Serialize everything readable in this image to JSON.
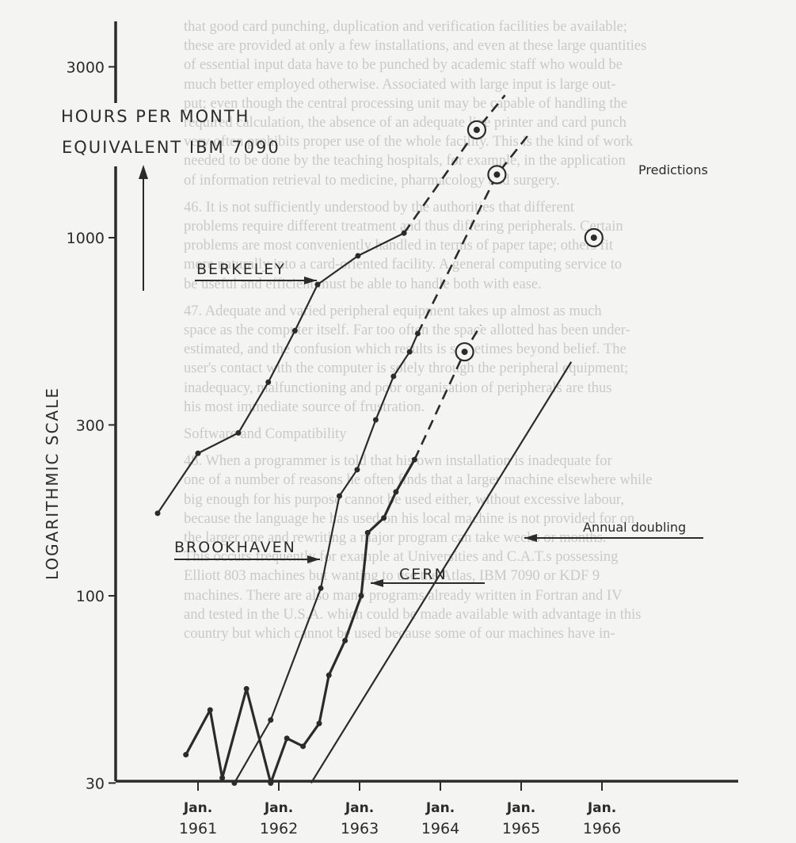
{
  "background_text": {
    "lines": [
      "that good card punching, duplication and verification facilities be available;",
      "these are provided at only a few installations, and even at these large quantities",
      "of essential input data have to be punched by academic staff who would be",
      "much better employed otherwise. Associated with large input is large out-",
      "put; even though the central processing unit may be capable of handling the",
      "required calculation, the absence of an adequate line printer and card punch",
      "very often prohibits proper use of the whole facility. This is the kind of work",
      "needed to be done by the teaching hospitals, for example, in the application",
      "of information retrieval to medicine, pharmacology and surgery.",
      "",
      "46. It is not sufficiently understood by the authorities that different",
      "problems require different treatment and thus differing peripherals. Certain",
      "problems are most conveniently handled in terms of paper tape; others fit",
      "more naturally into a card-oriented facility. A general computing service to",
      "be useful and efficient must be able to handle both with ease.",
      "",
      "47. Adequate and varied peripheral equipment takes up almost as much",
      "space as the computer itself. Far too often the space allotted has been under-",
      "estimated, and the confusion which results is sometimes beyond belief. The",
      "user's contact with the computer is solely through the peripheral equipment;",
      "inadequacy, malfunctioning and poor organisation of peripherals are thus",
      "his most immediate source of frustration.",
      "",
      "Software and Compatibility",
      "",
      "48. When a programmer is told that his own installation is inadequate for",
      "one of a number of reasons he often finds that a larger machine elsewhere while",
      "big enough for his purpose cannot be used either, without excessive labour,",
      "because the language he has used on his local machine is not provided for on",
      "the larger one and rewriting a major program can take weeks or months.",
      "This occurs frequently for example at Universities and C.A.T.s possessing",
      "Elliott 803 machines but wanting to use the Atlas, IBM 7090 or KDF 9",
      "machines. There are also many programs already written in Fortran and IV",
      "and tested in the U.S.A. which could be made available with advantage in this",
      "country but which cannot be used because some of our machines have in-"
    ]
  },
  "chart_data": {
    "type": "line",
    "title": "",
    "ylabel": "LOGARITHMIC SCALE",
    "y_unit_label": [
      "HOURS PER MONTH",
      "EQUIVALENT IBM 7090"
    ],
    "xlabel": "",
    "yscale": "log",
    "ylim": [
      30,
      3000
    ],
    "y_ticks": [
      {
        "value": 3000,
        "label": "3000"
      },
      {
        "value": 1000,
        "label": "1000"
      },
      {
        "value": 300,
        "label": "300"
      },
      {
        "value": 100,
        "label": "100"
      },
      {
        "value": 30,
        "label": "30"
      }
    ],
    "x_ticks": [
      {
        "value": 1961,
        "label": [
          "Jan.",
          "1961"
        ]
      },
      {
        "value": 1962,
        "label": [
          "Jan.",
          "1962"
        ]
      },
      {
        "value": 1963,
        "label": [
          "Jan.",
          "1963"
        ]
      },
      {
        "value": 1964,
        "label": [
          "Jan.",
          "1964"
        ]
      },
      {
        "value": 1965,
        "label": [
          "Jan.",
          "1965"
        ]
      },
      {
        "value": 1966,
        "label": [
          "Jan.",
          "1966"
        ]
      }
    ],
    "xlim": [
      1960.5,
      1967.2
    ],
    "grid": false,
    "series": [
      {
        "name": "BERKELEY",
        "style": "solid-then-dashed",
        "points": [
          {
            "x": 1960.5,
            "y": 170
          },
          {
            "x": 1961.0,
            "y": 250
          },
          {
            "x": 1961.5,
            "y": 285
          },
          {
            "x": 1961.87,
            "y": 395
          },
          {
            "x": 1962.2,
            "y": 550
          },
          {
            "x": 1962.48,
            "y": 740
          },
          {
            "x": 1962.98,
            "y": 890
          },
          {
            "x": 1963.55,
            "y": 1030
          }
        ],
        "prediction_line": [
          {
            "x": 1963.55,
            "y": 1030
          },
          {
            "x": 1964.45,
            "y": 2000
          },
          {
            "x": 1964.8,
            "y": 2500
          }
        ],
        "predictions": [
          {
            "x": 1964.45,
            "y": 2000
          }
        ]
      },
      {
        "name": "BROOKHAVEN",
        "style": "solid-then-dashed",
        "points": [
          {
            "x": 1961.45,
            "y": 30
          },
          {
            "x": 1961.9,
            "y": 45
          },
          {
            "x": 1962.52,
            "y": 105
          },
          {
            "x": 1962.75,
            "y": 190
          },
          {
            "x": 1962.97,
            "y": 225
          },
          {
            "x": 1963.2,
            "y": 310
          },
          {
            "x": 1963.42,
            "y": 410
          },
          {
            "x": 1963.62,
            "y": 480
          },
          {
            "x": 1963.72,
            "y": 540
          }
        ],
        "prediction_line": [
          {
            "x": 1963.72,
            "y": 540
          },
          {
            "x": 1964.7,
            "y": 1500
          },
          {
            "x": 1965.1,
            "y": 1950
          }
        ],
        "predictions": [
          {
            "x": 1964.7,
            "y": 1500
          }
        ]
      },
      {
        "name": "CERN",
        "style": "solid-then-dashed",
        "points": [
          {
            "x": 1960.85,
            "y": 36
          },
          {
            "x": 1961.15,
            "y": 48
          },
          {
            "x": 1961.3,
            "y": 31
          },
          {
            "x": 1961.6,
            "y": 55
          },
          {
            "x": 1961.9,
            "y": 30
          },
          {
            "x": 1962.1,
            "y": 40
          },
          {
            "x": 1962.3,
            "y": 38
          },
          {
            "x": 1962.5,
            "y": 44
          },
          {
            "x": 1962.62,
            "y": 60
          },
          {
            "x": 1962.82,
            "y": 75
          },
          {
            "x": 1963.02,
            "y": 100
          },
          {
            "x": 1963.1,
            "y": 150
          },
          {
            "x": 1963.3,
            "y": 165
          },
          {
            "x": 1963.45,
            "y": 195
          },
          {
            "x": 1963.68,
            "y": 240
          }
        ],
        "prediction_line": [
          {
            "x": 1963.68,
            "y": 240
          },
          {
            "x": 1964.3,
            "y": 480
          },
          {
            "x": 1964.5,
            "y": 570
          }
        ],
        "predictions": [
          {
            "x": 1964.3,
            "y": 480
          }
        ]
      },
      {
        "name": "Annual doubling",
        "style": "solid",
        "points": [
          {
            "x": 1962.4,
            "y": 30
          },
          {
            "x": 1965.62,
            "y": 450
          }
        ]
      },
      {
        "name": "Predictions",
        "style": "marker-only",
        "points": [
          {
            "x": 1965.9,
            "y": 1000
          }
        ]
      }
    ],
    "annotations": [
      {
        "text": "BERKELEY",
        "arrow": "right"
      },
      {
        "text": "BROOKHAVEN",
        "arrow": "right"
      },
      {
        "text": "CERN",
        "arrow": "left"
      },
      {
        "text": "Annual doubling",
        "arrow": "left"
      },
      {
        "text": "Predictions",
        "marker": "circled-dot"
      }
    ]
  },
  "labels": {
    "y_unit_line1": "HOURS PER MONTH",
    "y_unit_line2": "EQUIVALENT IBM 7090",
    "y_axis_title": "LOGARITHMIC SCALE",
    "berkeley": "BERKELEY",
    "brookhaven": "BROOKHAVEN",
    "cern": "CERN",
    "annual_doubling": "Annual doubling",
    "predictions": "Predictions"
  },
  "colors": {
    "ink": "#2b2b2b",
    "paper": "#f4f4f2",
    "bleed_text": "#c9c9c6"
  }
}
